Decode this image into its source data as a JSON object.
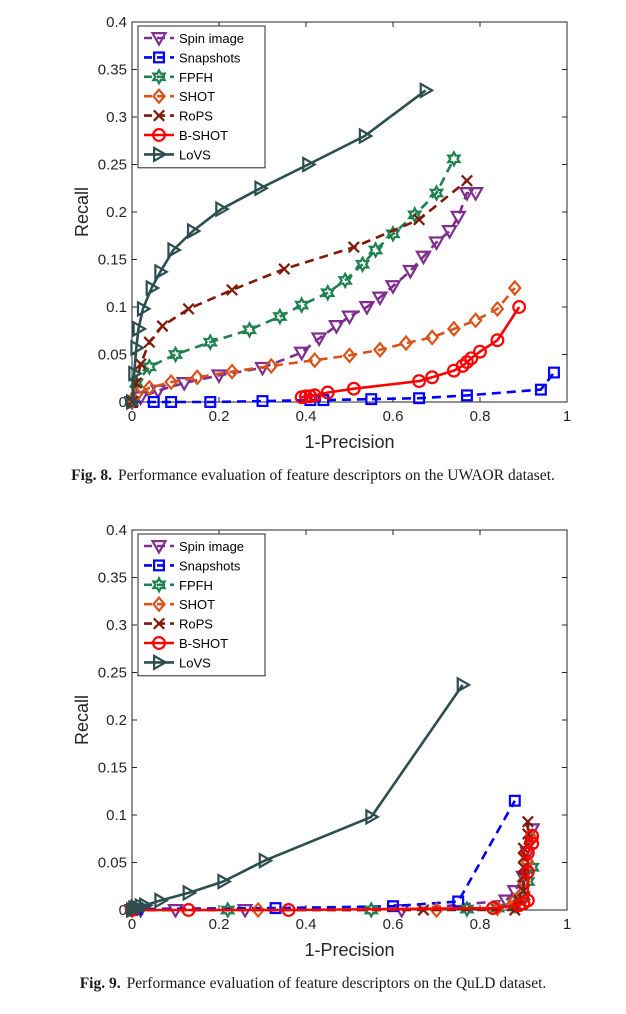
{
  "figures": [
    {
      "caption_label": "Fig. 8.",
      "caption_text": "Performance evaluation of feature descriptors on the UWAOR dataset."
    },
    {
      "caption_label": "Fig. 9.",
      "caption_text": "Performance evaluation of feature descriptors on the QuLD dataset."
    }
  ],
  "chart_data": [
    {
      "type": "line",
      "title": "",
      "xlabel": "1-Precision",
      "ylabel": "Recall",
      "xlim": [
        0,
        1
      ],
      "ylim": [
        0,
        0.4
      ],
      "xticks": [
        "0",
        "0.2",
        "0.4",
        "0.6",
        "0.8",
        "1"
      ],
      "yticks": [
        "0",
        "0.05",
        "0.1",
        "0.15",
        "0.2",
        "0.25",
        "0.3",
        "0.35",
        "0.4"
      ],
      "grid": false,
      "legend_position": "top-left",
      "series": [
        {
          "name": "Spin image",
          "color": "#7e2f8e",
          "marker": "triangle-down",
          "dashed": true,
          "x": [
            0.0,
            0.02,
            0.06,
            0.12,
            0.2,
            0.3,
            0.39,
            0.43,
            0.47,
            0.5,
            0.54,
            0.57,
            0.6,
            0.64,
            0.67,
            0.7,
            0.73,
            0.75,
            0.77,
            0.79
          ],
          "y": [
            0.0,
            0.005,
            0.012,
            0.02,
            0.028,
            0.036,
            0.052,
            0.067,
            0.08,
            0.09,
            0.1,
            0.11,
            0.122,
            0.138,
            0.153,
            0.168,
            0.18,
            0.195,
            0.22,
            0.22
          ]
        },
        {
          "name": "Snapshots",
          "color": "#0000ff",
          "marker": "square",
          "dashed": true,
          "x": [
            0.0,
            0.05,
            0.09,
            0.18,
            0.3,
            0.41,
            0.44,
            0.55,
            0.66,
            0.77,
            0.94,
            0.97
          ],
          "y": [
            0.0,
            0.0,
            0.0,
            0.0,
            0.001,
            0.002,
            0.002,
            0.003,
            0.004,
            0.007,
            0.013,
            0.031
          ]
        },
        {
          "name": "FPFH",
          "color": "#208050",
          "marker": "hexagram",
          "dashed": true,
          "x": [
            0.0,
            0.01,
            0.04,
            0.1,
            0.18,
            0.27,
            0.34,
            0.39,
            0.45,
            0.49,
            0.53,
            0.56,
            0.6,
            0.65,
            0.7,
            0.74
          ],
          "y": [
            0.0,
            0.02,
            0.037,
            0.05,
            0.063,
            0.076,
            0.09,
            0.102,
            0.115,
            0.128,
            0.145,
            0.16,
            0.177,
            0.197,
            0.22,
            0.256
          ]
        },
        {
          "name": "SHOT",
          "color": "#d95319",
          "marker": "diamond",
          "dashed": true,
          "x": [
            0.0,
            0.01,
            0.04,
            0.09,
            0.15,
            0.23,
            0.32,
            0.42,
            0.5,
            0.57,
            0.63,
            0.69,
            0.74,
            0.79,
            0.84,
            0.88
          ],
          "y": [
            0.0,
            0.008,
            0.015,
            0.021,
            0.026,
            0.032,
            0.038,
            0.044,
            0.049,
            0.055,
            0.062,
            0.068,
            0.077,
            0.086,
            0.098,
            0.12
          ]
        },
        {
          "name": "RoPS",
          "color": "#7f1a0a",
          "marker": "cross",
          "dashed": true,
          "x": [
            0.0,
            0.01,
            0.02,
            0.04,
            0.07,
            0.13,
            0.23,
            0.35,
            0.51,
            0.66,
            0.77
          ],
          "y": [
            0.0,
            0.02,
            0.04,
            0.063,
            0.08,
            0.098,
            0.118,
            0.14,
            0.163,
            0.192,
            0.233
          ]
        },
        {
          "name": "B-SHOT",
          "color": "#ff0000",
          "marker": "circle",
          "dashed": false,
          "x": [
            0.39,
            0.4,
            0.41,
            0.42,
            0.45,
            0.51,
            0.66,
            0.69,
            0.74,
            0.76,
            0.77,
            0.78,
            0.8,
            0.84,
            0.89
          ],
          "y": [
            0.005,
            0.006,
            0.006,
            0.007,
            0.01,
            0.014,
            0.022,
            0.026,
            0.033,
            0.038,
            0.042,
            0.046,
            0.053,
            0.065,
            0.1
          ]
        },
        {
          "name": "LoVS",
          "color": "#2c4e4e",
          "marker": "triangle-right",
          "dashed": false,
          "x": [
            0.0,
            0.005,
            0.01,
            0.015,
            0.025,
            0.045,
            0.065,
            0.095,
            0.14,
            0.205,
            0.295,
            0.405,
            0.535,
            0.675
          ],
          "y": [
            0.0,
            0.03,
            0.057,
            0.077,
            0.098,
            0.12,
            0.137,
            0.16,
            0.18,
            0.203,
            0.225,
            0.25,
            0.28,
            0.328
          ]
        }
      ]
    },
    {
      "type": "line",
      "title": "",
      "xlabel": "1-Precision",
      "ylabel": "Recall",
      "xlim": [
        0,
        1
      ],
      "ylim": [
        0,
        0.4
      ],
      "xticks": [
        "0",
        "0.2",
        "0.4",
        "0.6",
        "0.8",
        "1"
      ],
      "yticks": [
        "0",
        "0.05",
        "0.1",
        "0.15",
        "0.2",
        "0.25",
        "0.3",
        "0.35",
        "0.4"
      ],
      "grid": false,
      "legend_position": "top-left",
      "series": [
        {
          "name": "Spin image",
          "color": "#7e2f8e",
          "marker": "triangle-down",
          "dashed": true,
          "x": [
            0.0,
            0.02,
            0.1,
            0.26,
            0.62,
            0.86,
            0.88,
            0.9,
            0.91,
            0.92
          ],
          "y": [
            0.0,
            0.0,
            0.0,
            0.0,
            0.0,
            0.01,
            0.02,
            0.035,
            0.06,
            0.085
          ]
        },
        {
          "name": "Snapshots",
          "color": "#0000ff",
          "marker": "square",
          "dashed": true,
          "x": [
            0.0,
            0.01,
            0.33,
            0.6,
            0.75,
            0.88
          ],
          "y": [
            0.0,
            0.001,
            0.002,
            0.004,
            0.009,
            0.115
          ]
        },
        {
          "name": "FPFH",
          "color": "#208050",
          "marker": "hexagram",
          "dashed": true,
          "x": [
            0.0,
            0.22,
            0.55,
            0.77,
            0.84,
            0.88,
            0.9,
            0.91,
            0.92
          ],
          "y": [
            0.0,
            0.0,
            0.0,
            0.001,
            0.002,
            0.005,
            0.015,
            0.03,
            0.045
          ]
        },
        {
          "name": "SHOT",
          "color": "#d95319",
          "marker": "diamond",
          "dashed": true,
          "x": [
            0.0,
            0.29,
            0.7,
            0.84,
            0.88,
            0.9,
            0.91,
            0.92
          ],
          "y": [
            0.0,
            0.0,
            0.0,
            0.002,
            0.01,
            0.03,
            0.05,
            0.075
          ]
        },
        {
          "name": "RoPS",
          "color": "#7f1a0a",
          "marker": "cross",
          "dashed": true,
          "x": [
            0.0,
            0.67,
            0.88,
            0.89,
            0.9,
            0.9,
            0.9,
            0.9,
            0.9,
            0.91,
            0.91
          ],
          "y": [
            0.0,
            0.0,
            0.0,
            0.01,
            0.02,
            0.035,
            0.045,
            0.055,
            0.065,
            0.08,
            0.093
          ]
        },
        {
          "name": "B-SHOT",
          "color": "#ff0000",
          "marker": "circle",
          "dashed": false,
          "x": [
            0.0,
            0.13,
            0.36,
            0.83,
            0.89,
            0.9,
            0.91,
            0.91,
            0.91,
            0.92,
            0.92
          ],
          "y": [
            0.0,
            0.0,
            0.0,
            0.002,
            0.005,
            0.007,
            0.01,
            0.04,
            0.06,
            0.07,
            0.078
          ]
        },
        {
          "name": "LoVS",
          "color": "#2c4e4e",
          "marker": "triangle-right",
          "dashed": false,
          "x": [
            0.0,
            0.005,
            0.01,
            0.02,
            0.03,
            0.065,
            0.13,
            0.21,
            0.305,
            0.55,
            0.76
          ],
          "y": [
            0.0,
            0.002,
            0.003,
            0.004,
            0.005,
            0.01,
            0.018,
            0.03,
            0.052,
            0.098,
            0.237
          ]
        }
      ]
    }
  ]
}
